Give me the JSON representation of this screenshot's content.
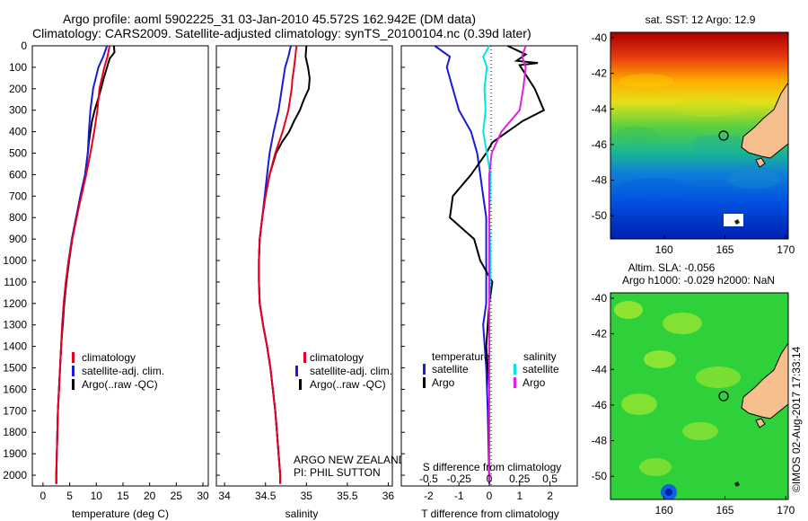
{
  "title_line1": "Argo profile: aoml 5902225_31 03-Jan-2010 45.572S 162.942E (DM data)",
  "title_line2": "Climatology: CARS2009. Satellite-adjusted climatology: synTS_20100104.nc (0.39d later)",
  "credit": "©IMOS 02-Aug-2017 17:33:14",
  "colors": {
    "climatology": "#e8001c",
    "satellite": "#1a1adb",
    "argo": "#000000",
    "sal_sat": "#00e5e5",
    "sal_argo": "#e020e0"
  },
  "chart_data": [
    {
      "type": "line",
      "xlabel": "temperature (deg C)",
      "xticks": [
        0,
        5,
        10,
        15,
        20,
        25,
        30
      ],
      "xlim": [
        -2,
        31
      ],
      "ylim": [
        0,
        2050
      ],
      "yticks": [
        0,
        100,
        200,
        300,
        400,
        500,
        600,
        700,
        800,
        900,
        1000,
        1100,
        1200,
        1300,
        1400,
        1500,
        1600,
        1700,
        1800,
        1900,
        2000
      ],
      "legend": [
        "climatology",
        "satellite-adj. clim.",
        "Argo(..raw -QC)"
      ],
      "series": [
        {
          "name": "climatology",
          "points": [
            [
              12.5,
              0
            ],
            [
              12.1,
              50
            ],
            [
              11.5,
              100
            ],
            [
              10.6,
              200
            ],
            [
              10.2,
              300
            ],
            [
              9.6,
              400
            ],
            [
              8.9,
              500
            ],
            [
              8.1,
              600
            ],
            [
              7.2,
              700
            ],
            [
              6.3,
              800
            ],
            [
              5.5,
              900
            ],
            [
              4.8,
              1000
            ],
            [
              4.3,
              1100
            ],
            [
              3.9,
              1200
            ],
            [
              3.6,
              1300
            ],
            [
              3.4,
              1400
            ],
            [
              3.2,
              1500
            ],
            [
              3.0,
              1600
            ],
            [
              2.8,
              1700
            ],
            [
              2.7,
              1800
            ],
            [
              2.6,
              1900
            ],
            [
              2.5,
              2000
            ],
            [
              2.5,
              2040
            ]
          ]
        },
        {
          "name": "satellite-adj. clim.",
          "points": [
            [
              12.0,
              0
            ],
            [
              11.3,
              50
            ],
            [
              10.4,
              100
            ],
            [
              9.4,
              200
            ],
            [
              8.9,
              300
            ],
            [
              8.6,
              400
            ],
            [
              8.4,
              500
            ],
            [
              7.9,
              600
            ],
            [
              7.0,
              700
            ],
            [
              6.2,
              800
            ],
            [
              5.4,
              900
            ],
            [
              4.8,
              1000
            ],
            [
              4.3,
              1100
            ],
            [
              3.9,
              1200
            ],
            [
              3.6,
              1300
            ],
            [
              3.4,
              1400
            ],
            [
              3.2,
              1500
            ],
            [
              3.0,
              1600
            ],
            [
              2.8,
              1700
            ],
            [
              2.7,
              1800
            ],
            [
              2.6,
              1900
            ],
            [
              2.5,
              2000
            ],
            [
              2.5,
              2040
            ]
          ]
        },
        {
          "name": "Argo(..raw -QC)",
          "points": [
            [
              13.3,
              0
            ],
            [
              13.4,
              30
            ],
            [
              12.5,
              60
            ],
            [
              12.0,
              100
            ],
            [
              11.4,
              150
            ],
            [
              10.9,
              200
            ],
            [
              10.3,
              250
            ],
            [
              9.7,
              300
            ],
            [
              9.2,
              350
            ],
            [
              8.9,
              400
            ],
            [
              8.6,
              450
            ],
            [
              8.4,
              500
            ],
            [
              7.9,
              600
            ],
            [
              7.0,
              700
            ],
            [
              6.3,
              800
            ],
            [
              5.5,
              900
            ],
            [
              4.9,
              1000
            ],
            [
              4.4,
              1100
            ],
            [
              4.0,
              1200
            ],
            [
              3.7,
              1300
            ],
            [
              3.4,
              1400
            ],
            [
              3.2,
              1500
            ],
            [
              3.0,
              1600
            ],
            [
              2.8,
              1700
            ],
            [
              2.7,
              1800
            ],
            [
              2.6,
              1900
            ],
            [
              2.5,
              2000
            ],
            [
              2.5,
              2040
            ]
          ]
        }
      ]
    },
    {
      "type": "line",
      "xlabel": "salinity",
      "xticks": [
        34,
        34.5,
        35,
        35.5,
        36
      ],
      "xtick_labels": [
        "34",
        "34.5",
        "35",
        "35.5",
        "36"
      ],
      "xlim": [
        33.9,
        36.05
      ],
      "ylim": [
        0,
        2050
      ],
      "legend": [
        "climatology",
        "satellite-adj. clim.",
        "Argo(..raw -QC)"
      ],
      "annotation": [
        "ARGO NEW ZEALAND",
        "PI: PHIL SUTTON"
      ],
      "series": [
        {
          "name": "climatology",
          "points": [
            [
              34.88,
              0
            ],
            [
              34.85,
              100
            ],
            [
              34.83,
              150
            ],
            [
              34.82,
              200
            ],
            [
              34.78,
              300
            ],
            [
              34.71,
              400
            ],
            [
              34.62,
              500
            ],
            [
              34.55,
              600
            ],
            [
              34.5,
              700
            ],
            [
              34.46,
              800
            ],
            [
              34.43,
              900
            ],
            [
              34.42,
              1000
            ],
            [
              34.42,
              1100
            ],
            [
              34.43,
              1200
            ],
            [
              34.47,
              1300
            ],
            [
              34.52,
              1400
            ],
            [
              34.56,
              1500
            ],
            [
              34.59,
              1600
            ],
            [
              34.62,
              1700
            ],
            [
              34.64,
              1800
            ],
            [
              34.66,
              1900
            ],
            [
              34.68,
              2000
            ],
            [
              34.68,
              2040
            ]
          ]
        },
        {
          "name": "satellite-adj. clim.",
          "points": [
            [
              34.81,
              0
            ],
            [
              34.78,
              50
            ],
            [
              34.74,
              100
            ],
            [
              34.7,
              200
            ],
            [
              34.66,
              300
            ],
            [
              34.6,
              400
            ],
            [
              34.55,
              500
            ],
            [
              34.52,
              600
            ],
            [
              34.49,
              700
            ],
            [
              34.46,
              800
            ],
            [
              34.43,
              900
            ],
            [
              34.42,
              1000
            ],
            [
              34.42,
              1100
            ],
            [
              34.43,
              1200
            ],
            [
              34.47,
              1300
            ],
            [
              34.52,
              1400
            ],
            [
              34.56,
              1500
            ],
            [
              34.59,
              1600
            ],
            [
              34.62,
              1700
            ],
            [
              34.64,
              1800
            ],
            [
              34.66,
              1900
            ],
            [
              34.68,
              2000
            ],
            [
              34.68,
              2040
            ]
          ]
        },
        {
          "name": "Argo(..raw -QC)",
          "points": [
            [
              35.0,
              0
            ],
            [
              34.99,
              50
            ],
            [
              35.02,
              100
            ],
            [
              35.04,
              150
            ],
            [
              35.03,
              200
            ],
            [
              34.97,
              250
            ],
            [
              34.92,
              300
            ],
            [
              34.85,
              350
            ],
            [
              34.79,
              400
            ],
            [
              34.7,
              450
            ],
            [
              34.63,
              500
            ],
            [
              34.55,
              600
            ],
            [
              34.5,
              700
            ],
            [
              34.46,
              800
            ],
            [
              34.43,
              900
            ],
            [
              34.42,
              1000
            ],
            [
              34.42,
              1100
            ],
            [
              34.43,
              1200
            ],
            [
              34.47,
              1300
            ],
            [
              34.52,
              1400
            ],
            [
              34.56,
              1500
            ],
            [
              34.59,
              1600
            ],
            [
              34.62,
              1700
            ],
            [
              34.64,
              1800
            ],
            [
              34.66,
              1900
            ],
            [
              34.68,
              2000
            ],
            [
              34.68,
              2040
            ]
          ]
        }
      ]
    },
    {
      "type": "line",
      "xlabel": "T difference from climatology",
      "xticks": [
        -2,
        -1,
        0,
        1,
        2
      ],
      "xlim": [
        -2.9,
        2.9
      ],
      "top_label": "S difference from climatology",
      "top_ticks": [
        -0.5,
        -0.25,
        0,
        0.25,
        0.5
      ],
      "top_tick_labels": [
        "-0.5",
        "-0.25",
        "0",
        "0.25",
        "0.5"
      ],
      "legend_groups": [
        {
          "header": "temperature",
          "items": [
            "satellite",
            "Argo"
          ]
        },
        {
          "header": "salinity",
          "items": [
            "satellite",
            "Argo"
          ]
        }
      ],
      "series": [
        {
          "name": "satellite",
          "group": "temperature",
          "points": [
            [
              -1.8,
              0
            ],
            [
              -1.3,
              50
            ],
            [
              -1.4,
              100
            ],
            [
              -1.2,
              200
            ],
            [
              -1.0,
              300
            ],
            [
              -0.6,
              400
            ],
            [
              -0.4,
              500
            ],
            [
              -0.3,
              600
            ],
            [
              -0.2,
              700
            ],
            [
              -0.1,
              800
            ],
            [
              -0.1,
              1000
            ],
            [
              -0.1,
              1200
            ],
            [
              -0.2,
              1300
            ],
            [
              -0.1,
              1500
            ],
            [
              -0.05,
              1700
            ],
            [
              0,
              2040
            ]
          ]
        },
        {
          "name": "Argo",
          "group": "temperature",
          "points": [
            [
              0.6,
              0
            ],
            [
              1.2,
              40
            ],
            [
              0.9,
              70
            ],
            [
              1.6,
              80
            ],
            [
              1.0,
              90
            ],
            [
              1.5,
              200
            ],
            [
              1.8,
              300
            ],
            [
              1.1,
              350
            ],
            [
              0.1,
              450
            ],
            [
              -0.1,
              500
            ],
            [
              -0.6,
              600
            ],
            [
              -1.2,
              700
            ],
            [
              -1.3,
              800
            ],
            [
              -0.5,
              900
            ],
            [
              -0.3,
              1000
            ],
            [
              0.1,
              1100
            ],
            [
              0,
              1200
            ],
            [
              -0.1,
              1400
            ],
            [
              0,
              1600
            ],
            [
              0,
              2040
            ]
          ]
        },
        {
          "name": "satellite",
          "group": "salinity",
          "points": [
            [
              0.0,
              0
            ],
            [
              -0.05,
              50
            ],
            [
              -0.02,
              100
            ],
            [
              -0.04,
              200
            ],
            [
              -0.03,
              300
            ],
            [
              -0.05,
              400
            ],
            [
              -0.02,
              500
            ],
            [
              0.01,
              600
            ],
            [
              0,
              800
            ],
            [
              0.01,
              1000
            ],
            [
              0,
              1200
            ],
            [
              0,
              1500
            ],
            [
              0,
              2040
            ]
          ]
        },
        {
          "name": "Argo",
          "group": "salinity",
          "points": [
            [
              0.3,
              0
            ],
            [
              0.27,
              50
            ],
            [
              0.3,
              100
            ],
            [
              0.28,
              200
            ],
            [
              0.25,
              300
            ],
            [
              0.1,
              400
            ],
            [
              0.02,
              500
            ],
            [
              0,
              600
            ],
            [
              0,
              2040
            ]
          ]
        }
      ]
    },
    {
      "type": "heatmap",
      "title": "sat. SST: 12 Argo: 12.9",
      "xticks": [
        160,
        165,
        170
      ],
      "yticks": [
        -40,
        -42,
        -44,
        -46,
        -48,
        -50
      ],
      "xlim": [
        155.6,
        170.2
      ],
      "ylim": [
        -51.3,
        -39.7
      ],
      "argo_position": {
        "lon": 162.942,
        "lat": -45.572
      }
    },
    {
      "type": "heatmap",
      "title_line1": "Altim. SLA: -0.056",
      "title_line2": "Argo h1000: -0.029 h2000: NaN",
      "xticks": [
        160,
        165,
        170
      ],
      "yticks": [
        -40,
        -42,
        -44,
        -46,
        -48,
        -50
      ],
      "xlim": [
        155.6,
        170.2
      ],
      "ylim": [
        -51.3,
        -39.7
      ],
      "argo_position": {
        "lon": 162.942,
        "lat": -45.572
      }
    }
  ]
}
